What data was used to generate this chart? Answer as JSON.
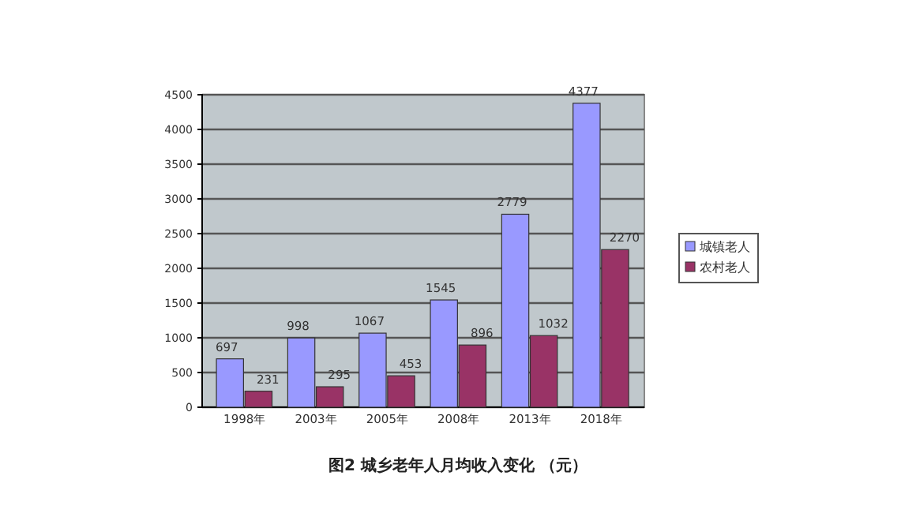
{
  "chart_data": {
    "type": "bar",
    "title": "图2  城乡老年人月均收入变化    （元）",
    "categories": [
      "1998年",
      "2003年",
      "2005年",
      "2008年",
      "2013年",
      "2018年"
    ],
    "series": [
      {
        "name": "城镇老人",
        "color": "#9999ff",
        "values": [
          697,
          998,
          1067,
          1545,
          2779,
          4377
        ]
      },
      {
        "name": "农村老人",
        "color": "#993366",
        "values": [
          231,
          295,
          453,
          896,
          1032,
          2270
        ]
      }
    ],
    "ylim": [
      0,
      4500
    ],
    "yticks": [
      0,
      500,
      1000,
      1500,
      2000,
      2500,
      3000,
      3500,
      4000,
      4500
    ],
    "grid": "y",
    "legend": "right",
    "data_labels": true
  }
}
